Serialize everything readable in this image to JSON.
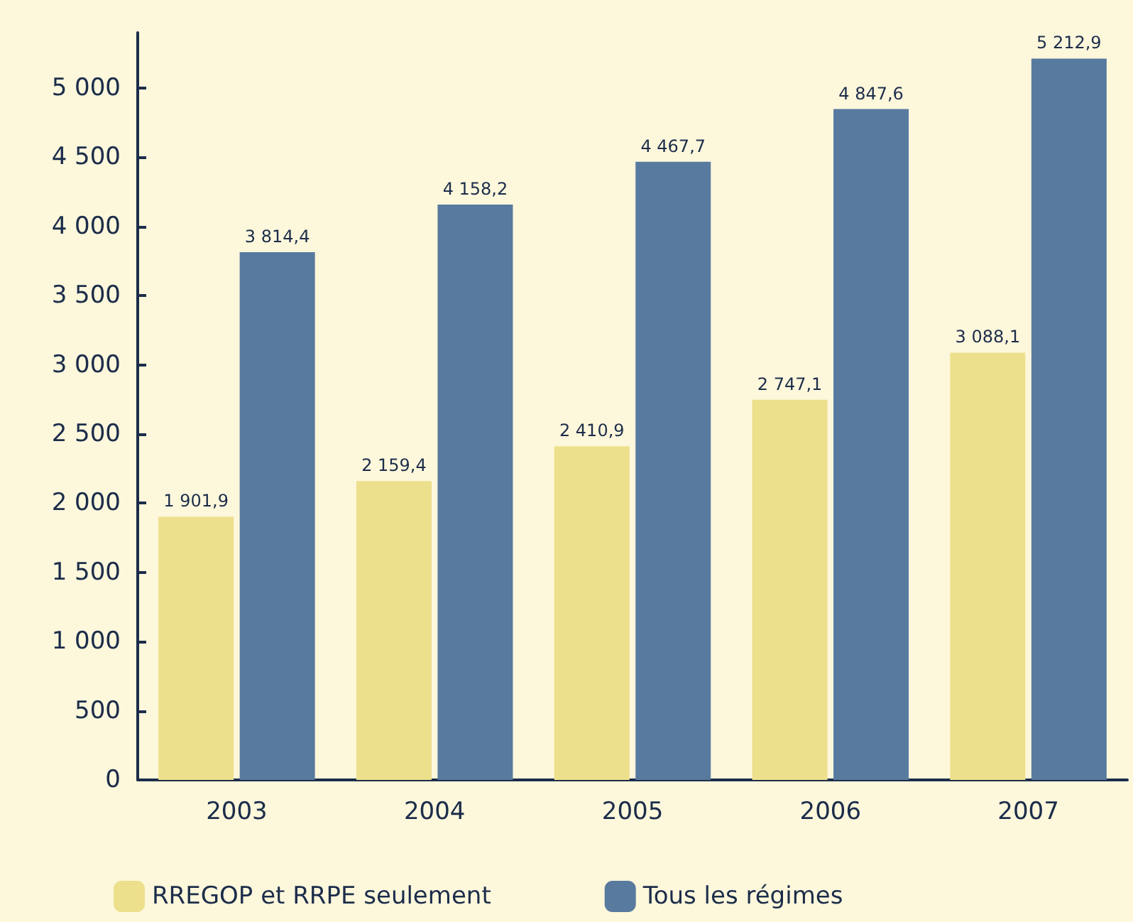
{
  "chart_data": {
    "type": "bar",
    "categories": [
      "2003",
      "2004",
      "2005",
      "2006",
      "2007"
    ],
    "series": [
      {
        "name": "RREGOP et RRPE seulement",
        "color": "#ede08c",
        "values": [
          1901.9,
          2159.4,
          2410.9,
          2747.1,
          3088.1
        ],
        "value_labels": [
          "1 901,9",
          "2 159,4",
          "2 410,9",
          "2 747,1",
          "3 088,1"
        ]
      },
      {
        "name": "Tous les régimes",
        "color": "#587a9e",
        "values": [
          3814.4,
          4158.2,
          4467.7,
          4847.6,
          5212.9
        ],
        "value_labels": [
          "3 814,4",
          "4 158,2",
          "4 467,7",
          "4 847,6",
          "5 212,9"
        ]
      }
    ],
    "ylim": [
      0,
      5400
    ],
    "yticks": [
      0,
      500,
      {
        "value": 1000,
        "label": "1 000"
      },
      {
        "value": 1500,
        "label": "1 500"
      },
      {
        "value": 2000,
        "label": "2 000"
      },
      {
        "value": 2500,
        "label": "2 500"
      },
      {
        "value": 3000,
        "label": "3 000"
      },
      {
        "value": 3500,
        "label": "3 500"
      },
      {
        "value": 4000,
        "label": "4 000"
      },
      {
        "value": 4500,
        "label": "4 500"
      },
      {
        "value": 5000,
        "label": "5 000"
      }
    ],
    "grid": false,
    "legend": "bottom left"
  }
}
